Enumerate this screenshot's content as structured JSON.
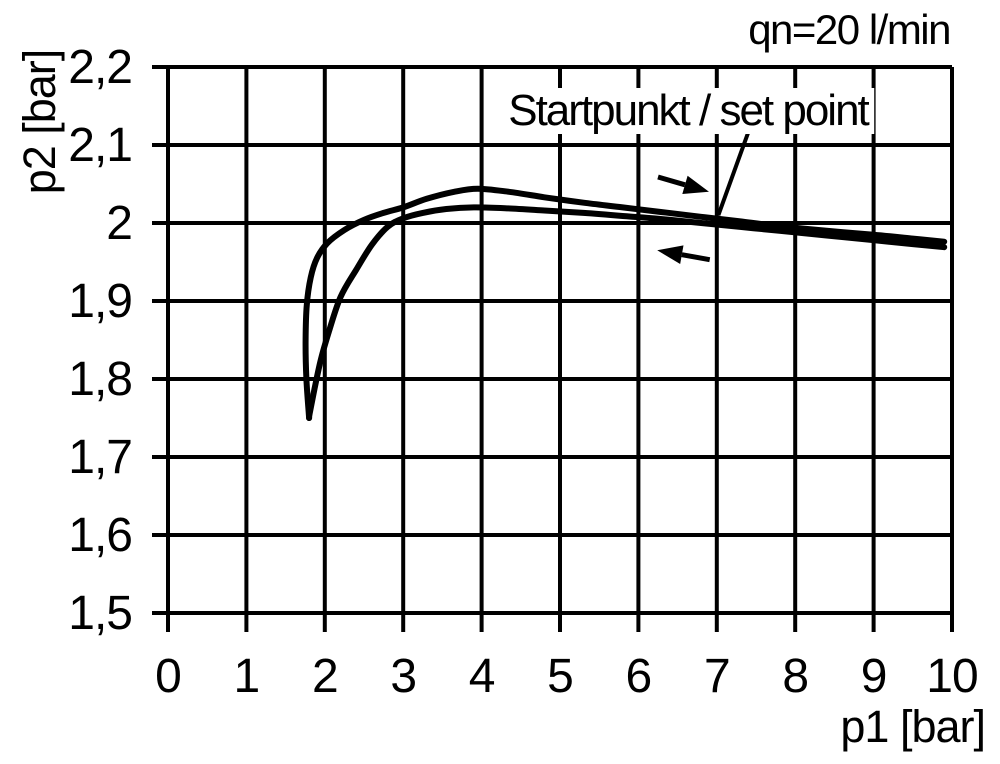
{
  "chart_data": {
    "type": "line",
    "title": "qn=20 l/min",
    "xlabel": "p1 [bar]",
    "ylabel": "p2 [bar]",
    "xlim": [
      0,
      10
    ],
    "ylim": [
      1.5,
      2.2
    ],
    "grid": true,
    "legend": "none",
    "background_color": "#ffffff",
    "line_color": "#000000",
    "grid_color": "#000000",
    "xticks": {
      "values": [
        0,
        1,
        2,
        3,
        4,
        5,
        6,
        7,
        8,
        9,
        10
      ],
      "labels": [
        "0",
        "1",
        "2",
        "3",
        "4",
        "5",
        "6",
        "7",
        "8",
        "9",
        "10"
      ]
    },
    "yticks": {
      "values": [
        2.2,
        2.1,
        2.0,
        1.9,
        1.8,
        1.7,
        1.6,
        1.5
      ],
      "labels": [
        "2,2",
        "2,1",
        "2",
        "1,9",
        "1,8",
        "1,7",
        "1,6",
        "1,5"
      ]
    },
    "series": [
      {
        "name": "p1 increasing (forward stroke)",
        "direction": "right",
        "points": [
          [
            1.8,
            1.75
          ],
          [
            1.765,
            1.8
          ],
          [
            1.755,
            1.85
          ],
          [
            1.77,
            1.895
          ],
          [
            1.82,
            1.93
          ],
          [
            1.9,
            1.955
          ],
          [
            2.03,
            1.974
          ],
          [
            2.25,
            1.991
          ],
          [
            2.5,
            2.004
          ],
          [
            2.75,
            2.013
          ],
          [
            3.0,
            2.02
          ],
          [
            3.3,
            2.031
          ],
          [
            3.65,
            2.04
          ],
          [
            3.95,
            2.044
          ],
          [
            4.35,
            2.04
          ],
          [
            4.8,
            2.033
          ],
          [
            5.3,
            2.026
          ],
          [
            5.8,
            2.02
          ],
          [
            6.3,
            2.014
          ],
          [
            6.8,
            2.008
          ],
          [
            7.3,
            2.002
          ],
          [
            7.8,
            1.996
          ],
          [
            8.4,
            1.99
          ],
          [
            9.0,
            1.985
          ],
          [
            9.5,
            1.98
          ],
          [
            9.9,
            1.976
          ]
        ]
      },
      {
        "name": "p1 decreasing (return stroke)",
        "direction": "left",
        "points": [
          [
            9.9,
            1.969
          ],
          [
            9.5,
            1.973
          ],
          [
            9.0,
            1.978
          ],
          [
            8.4,
            1.984
          ],
          [
            7.8,
            1.99
          ],
          [
            7.3,
            1.995
          ],
          [
            6.8,
            2.0
          ],
          [
            6.3,
            2.005
          ],
          [
            5.8,
            2.009
          ],
          [
            5.3,
            2.013
          ],
          [
            4.8,
            2.016
          ],
          [
            4.3,
            2.019
          ],
          [
            3.9,
            2.02
          ],
          [
            3.55,
            2.018
          ],
          [
            3.25,
            2.013
          ],
          [
            3.0,
            2.006
          ],
          [
            2.8,
            1.995
          ],
          [
            2.6,
            1.972
          ],
          [
            2.4,
            1.94
          ],
          [
            2.2,
            1.905
          ],
          [
            2.05,
            1.86
          ],
          [
            1.95,
            1.825
          ],
          [
            1.87,
            1.788
          ],
          [
            1.808,
            1.756
          ],
          [
            1.8,
            1.75
          ]
        ]
      }
    ],
    "annotation": {
      "label": "Startpunkt / set point",
      "label_pos": [
        6.48,
        2.144
      ],
      "leader": [
        [
          7.4,
          2.116
        ],
        [
          7.02,
          2.01
        ]
      ]
    },
    "direction_arrows": [
      {
        "name": "forward",
        "from": [
          6.25,
          2.059
        ],
        "to": [
          6.9,
          2.04
        ]
      },
      {
        "name": "return",
        "from": [
          6.91,
          1.953
        ],
        "to": [
          6.24,
          1.965
        ]
      }
    ]
  }
}
